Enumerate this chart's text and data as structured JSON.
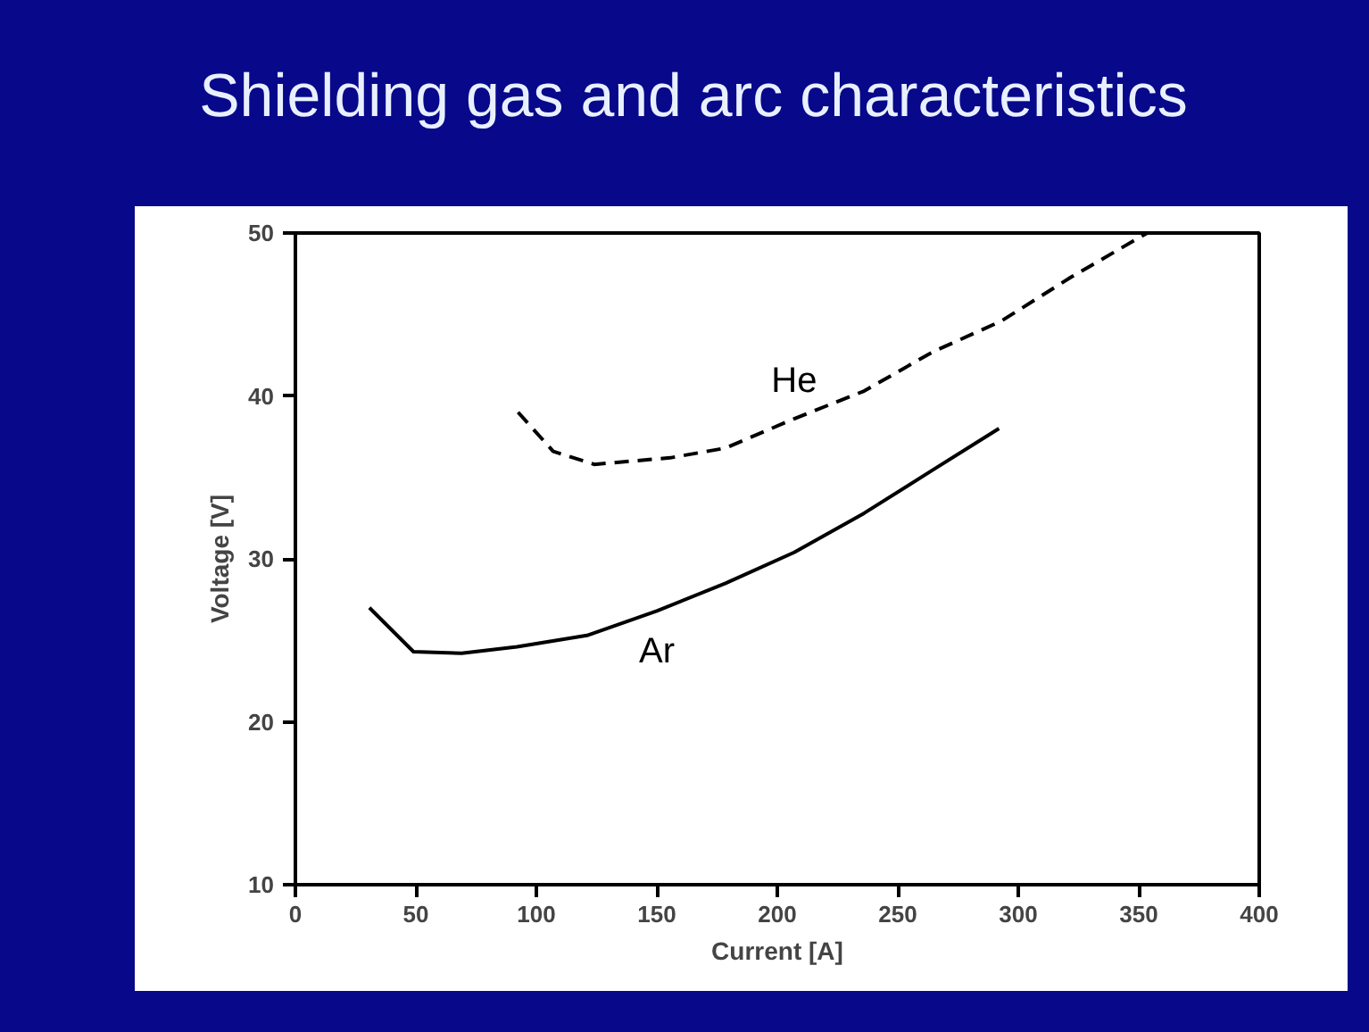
{
  "chart_data": {
    "type": "line",
    "title": "Shielding gas and arc characteristics",
    "xlabel": "Current [A]",
    "ylabel": "Voltage [V]",
    "xlim": [
      0,
      400
    ],
    "xticks": [
      0,
      50,
      100,
      150,
      200,
      250,
      300,
      350,
      400
    ],
    "ylim": [
      10,
      50
    ],
    "yticks": [
      10,
      20,
      30,
      40,
      50
    ],
    "grid": false,
    "legend": false,
    "marker": "none",
    "series": [
      {
        "name": "He",
        "color": "#000000",
        "line_style": "dashed",
        "x": [
          92.4,
          107,
          124,
          155.5,
          178.5,
          207,
          236,
          264.5,
          293,
          322,
          353.5
        ],
        "values": [
          39.0,
          36.6,
          35.8,
          36.2,
          36.8,
          38.6,
          40.3,
          42.7,
          44.6,
          47.3,
          50.0
        ]
      },
      {
        "name": "Ar",
        "color": "#000000",
        "line_style": "solid",
        "x": [
          30.7,
          49,
          69,
          92,
          121,
          150,
          178.5,
          207,
          236,
          265,
          292
        ],
        "values": [
          27.0,
          24.3,
          24.2,
          24.6,
          25.3,
          26.8,
          28.5,
          30.4,
          32.8,
          35.5,
          38.0
        ]
      }
    ]
  }
}
